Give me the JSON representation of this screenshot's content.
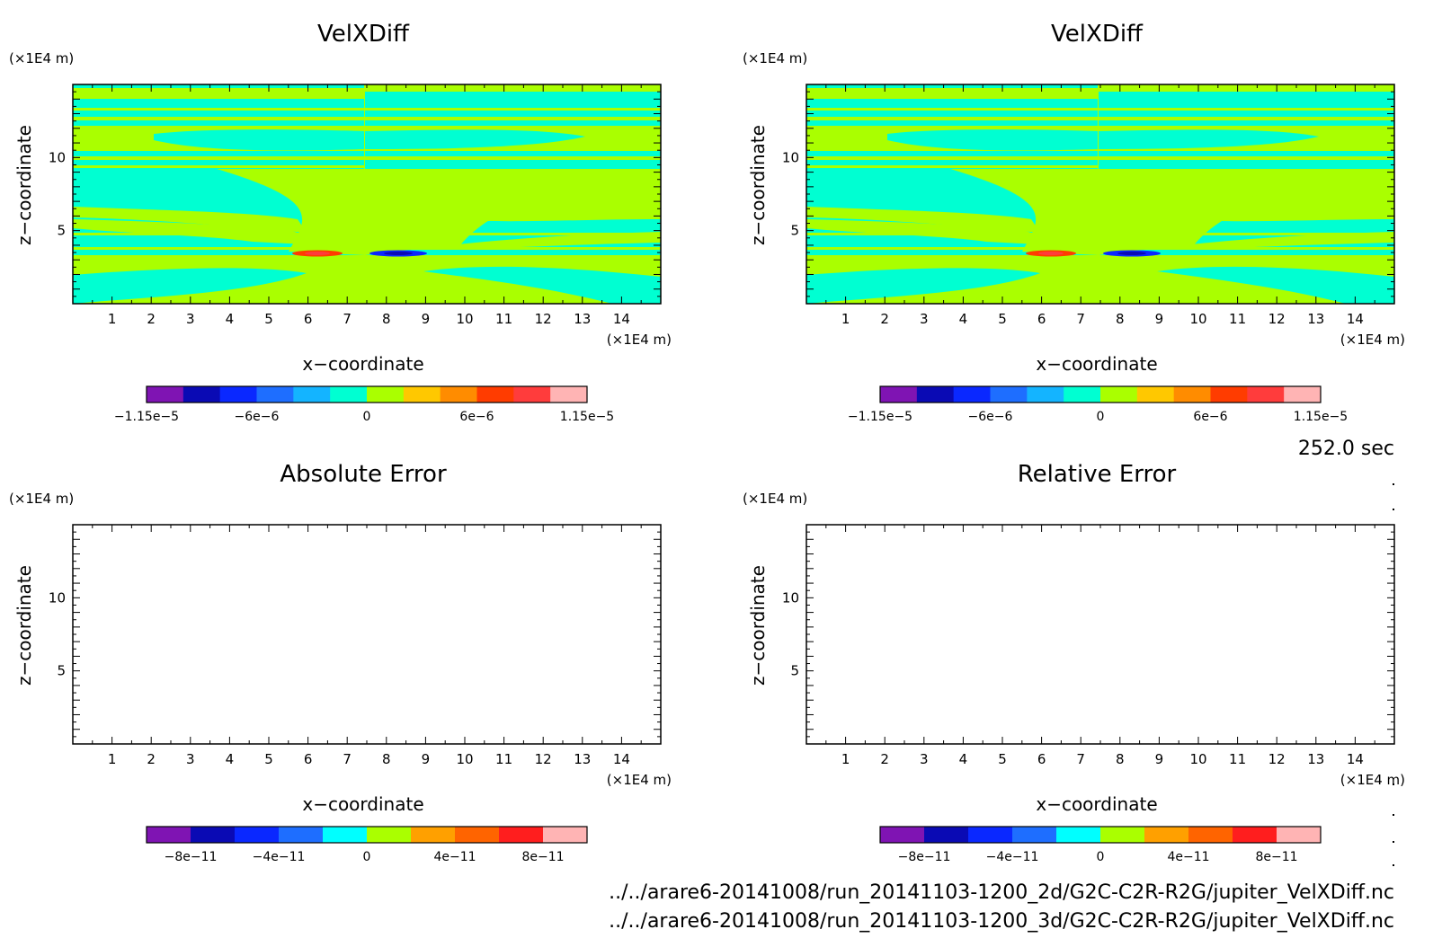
{
  "time_label": "252.0 sec",
  "files": [
    "../../arare6-20141008/run_20141103-1200_2d/G2C-C2R-R2G/jupiter_VelXDiff.nc",
    "../../arare6-20141008/run_20141103-1200_3d/G2C-C2R-R2G/jupiter_VelXDiff.nc"
  ],
  "chart_data": [
    {
      "type": "heatmap",
      "title": "VelXDiff",
      "xlabel": "x−coordinate",
      "ylabel": "z−coordinate",
      "x_unit": "(×1E4 m)",
      "y_unit": "(×1E4 m)",
      "xlim": [
        0,
        15
      ],
      "ylim": [
        0,
        15
      ],
      "x_ticks": [
        1,
        2,
        3,
        4,
        5,
        6,
        7,
        8,
        9,
        10,
        11,
        12,
        13,
        14
      ],
      "y_ticks": [
        5,
        10
      ],
      "colorbar_colors": [
        "#7f14b3",
        "#0a0ab4",
        "#0a28ff",
        "#1e6eff",
        "#14b4ff",
        "#00ffd2",
        "#aaff00",
        "#ffc800",
        "#ff8c00",
        "#ff3c00",
        "#ff3c3c",
        "#ffb4b4"
      ],
      "colorbar_tick_labels": [
        "−1.15e−5",
        "−6e−6",
        "0",
        "6e−6",
        "1.15e−5"
      ],
      "clim": [
        -1.15e-05,
        1.15e-05
      ],
      "dominant_levels": [
        "0 to 2e-6 (green-yellow)",
        "-2e-6 to 0 (cyan)"
      ],
      "extremes": {
        "min_near": [
          8.3,
          3.3
        ],
        "max_near": [
          6.5,
          3.3
        ]
      }
    },
    {
      "type": "heatmap",
      "title": "VelXDiff",
      "xlabel": "x−coordinate",
      "ylabel": "z−coordinate",
      "x_unit": "(×1E4 m)",
      "y_unit": "(×1E4 m)",
      "xlim": [
        0,
        15
      ],
      "ylim": [
        0,
        15
      ],
      "x_ticks": [
        1,
        2,
        3,
        4,
        5,
        6,
        7,
        8,
        9,
        10,
        11,
        12,
        13,
        14
      ],
      "y_ticks": [
        5,
        10
      ],
      "colorbar_colors": [
        "#7f14b3",
        "#0a0ab4",
        "#0a28ff",
        "#1e6eff",
        "#14b4ff",
        "#00ffd2",
        "#aaff00",
        "#ffc800",
        "#ff8c00",
        "#ff3c00",
        "#ff3c3c",
        "#ffb4b4"
      ],
      "colorbar_tick_labels": [
        "−1.15e−5",
        "−6e−6",
        "0",
        "6e−6",
        "1.15e−5"
      ],
      "clim": [
        -1.15e-05,
        1.15e-05
      ],
      "dominant_levels": [
        "0 to 2e-6 (green-yellow)",
        "-2e-6 to 0 (cyan)"
      ],
      "extremes": {
        "min_near": [
          8.3,
          3.3
        ],
        "max_near": [
          6.5,
          3.3
        ]
      }
    },
    {
      "type": "heatmap",
      "title": "Absolute Error",
      "xlabel": "x−coordinate",
      "ylabel": "z−coordinate",
      "x_unit": "(×1E4 m)",
      "y_unit": "(×1E4 m)",
      "xlim": [
        0,
        15
      ],
      "ylim": [
        0,
        15
      ],
      "x_ticks": [
        1,
        2,
        3,
        4,
        5,
        6,
        7,
        8,
        9,
        10,
        11,
        12,
        13,
        14
      ],
      "y_ticks": [
        5,
        10
      ],
      "colorbar_colors": [
        "#7f14b3",
        "#0a0ab4",
        "#0a28ff",
        "#1e6eff",
        "#00ffff",
        "#aaff00",
        "#ffa000",
        "#ff6400",
        "#ff1e1e",
        "#ffb4b4"
      ],
      "colorbar_tick_labels": [
        "−8e−11",
        "−4e−11",
        "0",
        "4e−11",
        "8e−11"
      ],
      "field_empty": true
    },
    {
      "type": "heatmap",
      "title": "Relative Error",
      "xlabel": "x−coordinate",
      "ylabel": "z−coordinate",
      "x_unit": "(×1E4 m)",
      "y_unit": "(×1E4 m)",
      "xlim": [
        0,
        15
      ],
      "ylim": [
        0,
        15
      ],
      "x_ticks": [
        1,
        2,
        3,
        4,
        5,
        6,
        7,
        8,
        9,
        10,
        11,
        12,
        13,
        14
      ],
      "y_ticks": [
        5,
        10
      ],
      "colorbar_colors": [
        "#7f14b3",
        "#0a0ab4",
        "#0a28ff",
        "#1e6eff",
        "#00ffff",
        "#aaff00",
        "#ffa000",
        "#ff6400",
        "#ff1e1e",
        "#ffb4b4"
      ],
      "colorbar_tick_labels": [
        "−8e−11",
        "−4e−11",
        "0",
        "4e−11",
        "8e−11"
      ],
      "field_empty": true
    }
  ]
}
